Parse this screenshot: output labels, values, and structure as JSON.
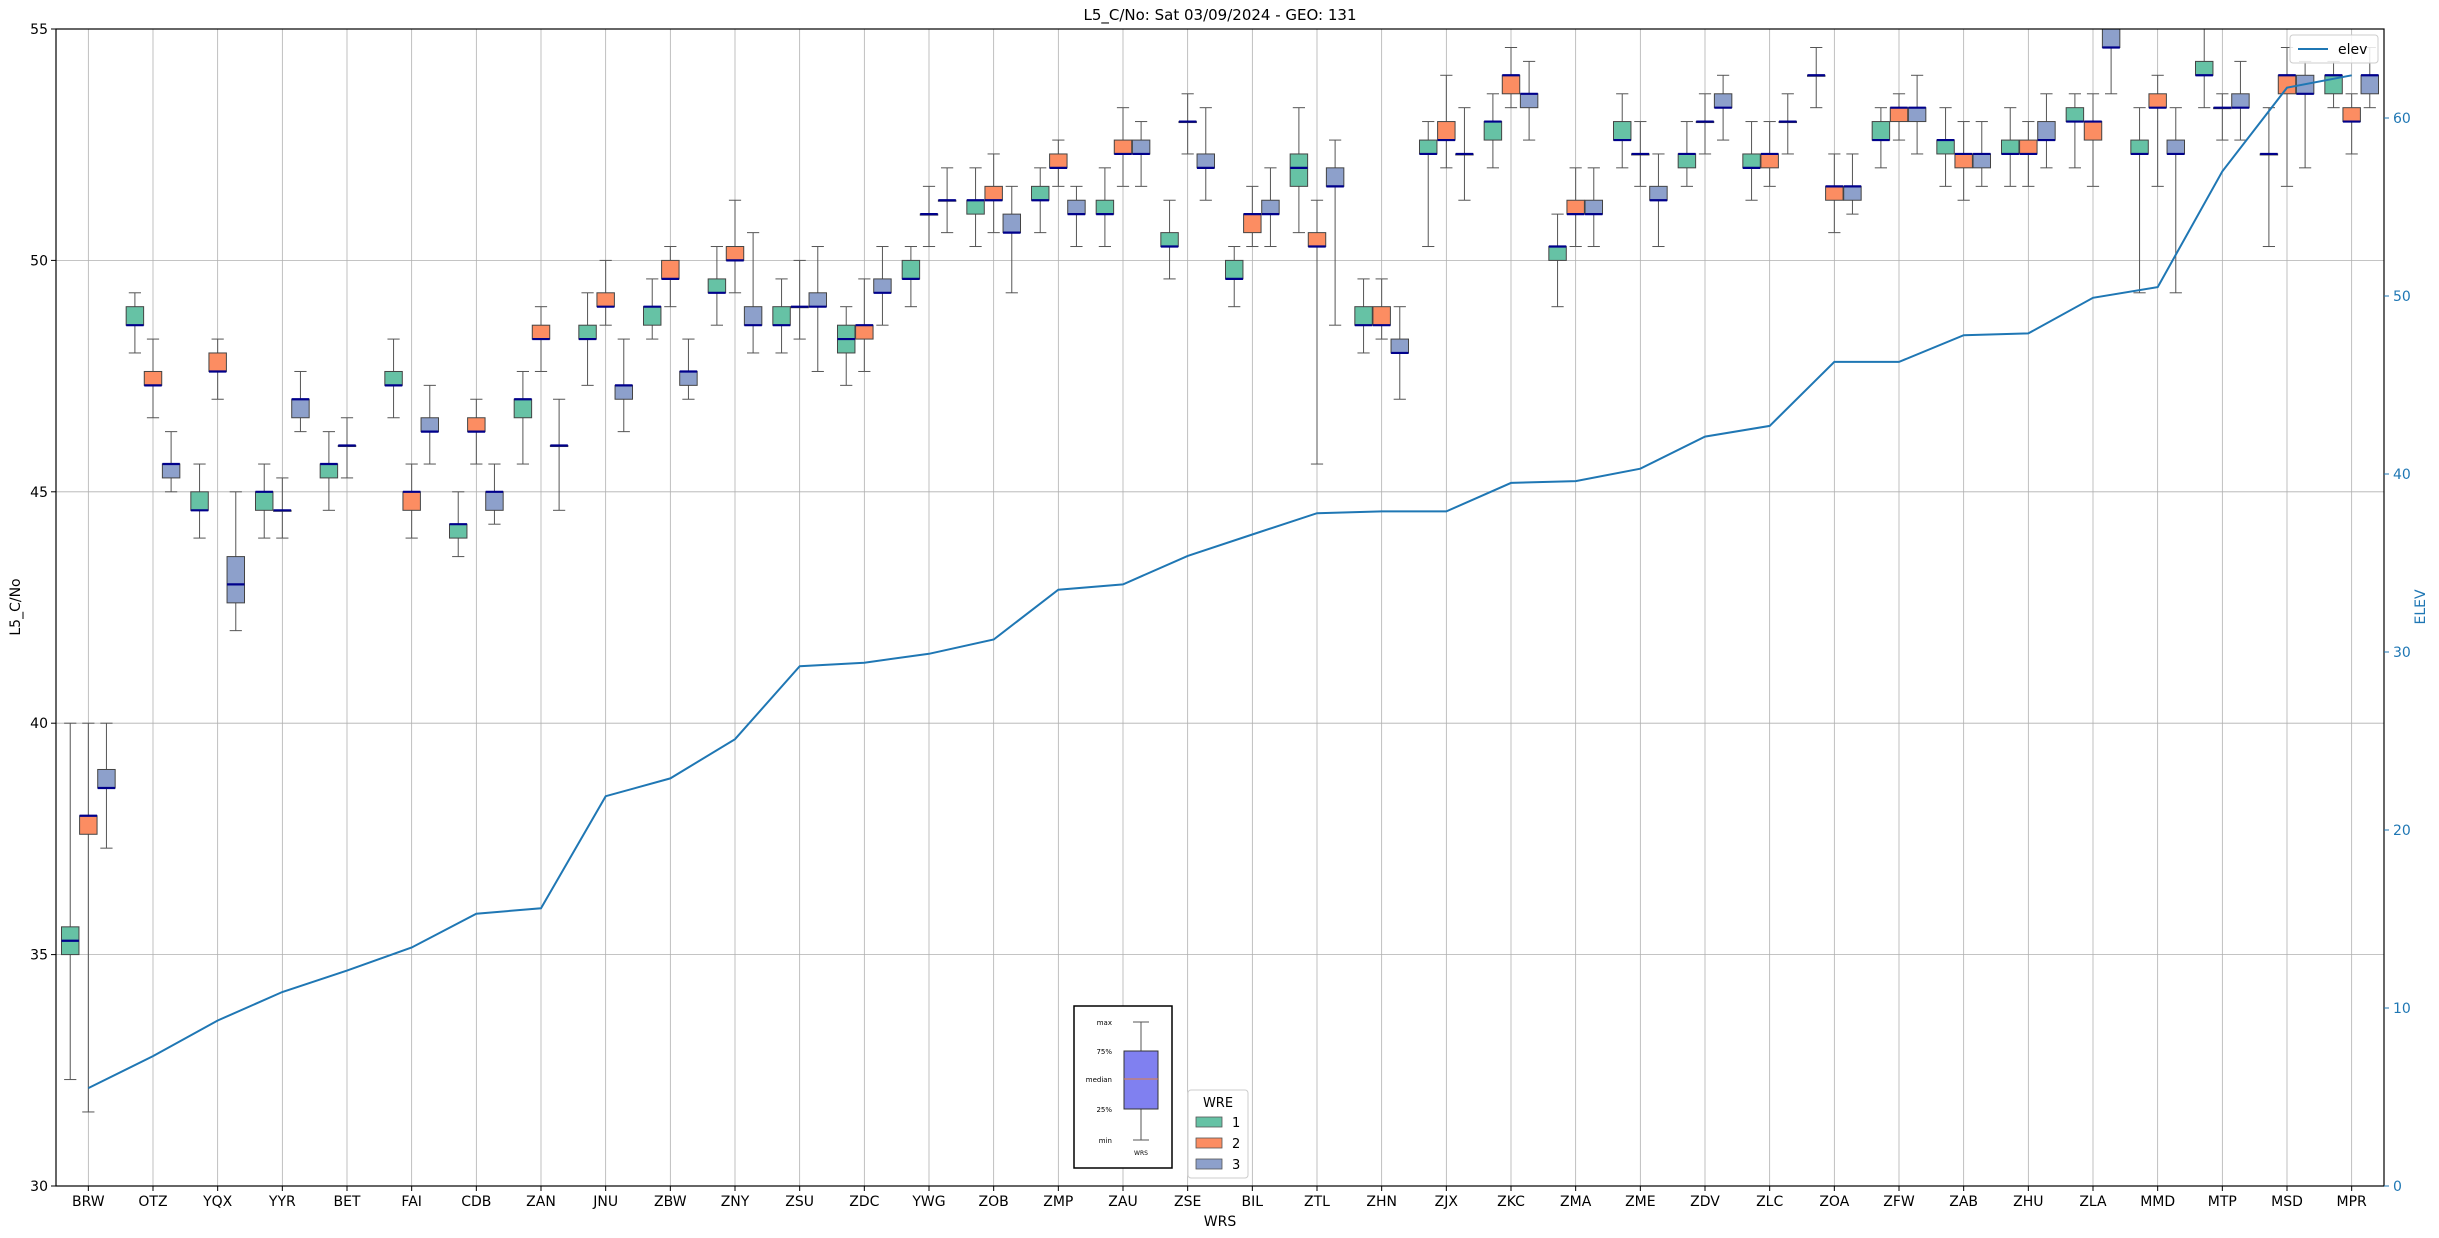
{
  "chart_data": {
    "type": "box",
    "title": "L5_C/No: Sat 03/09/2024 - GEO: 131",
    "xlabel": "WRS",
    "ylabel": "L5_C/No",
    "y2label": "ELEV",
    "ylim": [
      30,
      55
    ],
    "y2lim": [
      0,
      65
    ],
    "yticks": [
      30,
      35,
      40,
      45,
      50,
      55
    ],
    "y2ticks": [
      0,
      10,
      20,
      30,
      40,
      50,
      60
    ],
    "grid": true,
    "categories": [
      "BRW",
      "OTZ",
      "YQX",
      "YYR",
      "BET",
      "FAI",
      "CDB",
      "ZAN",
      "JNU",
      "ZBW",
      "ZNY",
      "ZSU",
      "ZDC",
      "YWG",
      "ZOB",
      "ZMP",
      "ZAU",
      "ZSE",
      "BIL",
      "ZTL",
      "ZHN",
      "ZJX",
      "ZKC",
      "ZMA",
      "ZME",
      "ZDV",
      "ZLC",
      "ZOA",
      "ZFW",
      "ZAB",
      "ZHU",
      "ZLA",
      "MMD",
      "MTP",
      "MSD",
      "MPR"
    ],
    "colors": {
      "1": "#66c2a5",
      "2": "#fc8d62",
      "3": "#8da0cb",
      "elev": "#1f77b4",
      "median": "#00008b",
      "whisker": "#555555"
    },
    "legend": {
      "title": "WRE",
      "labels": [
        "1",
        "2",
        "3"
      ],
      "position": "bottom-center"
    },
    "elev_legend": {
      "label": "elev",
      "position": "top-right"
    },
    "key_box": {
      "labels": [
        "max",
        "75%",
        "median",
        "25%",
        "min"
      ],
      "xlabel": "WRS",
      "fill": "#8080f0"
    },
    "elev": [
      5.5,
      7.3,
      9.3,
      10.9,
      12.1,
      13.4,
      15.3,
      15.6,
      21.9,
      22.9,
      25.1,
      29.2,
      29.4,
      29.9,
      30.7,
      33.5,
      33.8,
      35.4,
      36.6,
      37.8,
      37.9,
      37.9,
      39.5,
      39.6,
      40.3,
      42.1,
      42.7,
      46.3,
      46.3,
      47.8,
      47.9,
      49.9,
      50.5,
      57.0,
      61.7,
      62.4
    ],
    "boxes": [
      {
        "cat": "BRW",
        "wre": 1,
        "min": 32.3,
        "q1": 35.0,
        "med": 35.3,
        "q3": 35.6,
        "max": 40.0
      },
      {
        "cat": "BRW",
        "wre": 2,
        "min": 31.6,
        "q1": 37.6,
        "med": 38.0,
        "q3": 38.0,
        "max": 40.0
      },
      {
        "cat": "BRW",
        "wre": 3,
        "min": 37.3,
        "q1": 38.6,
        "med": 38.6,
        "q3": 39.0,
        "max": 40.0
      },
      {
        "cat": "OTZ",
        "wre": 1,
        "min": 48.0,
        "q1": 48.6,
        "med": 48.6,
        "q3": 49.0,
        "max": 49.3
      },
      {
        "cat": "OTZ",
        "wre": 2,
        "min": 46.6,
        "q1": 47.3,
        "med": 47.3,
        "q3": 47.6,
        "max": 48.3
      },
      {
        "cat": "OTZ",
        "wre": 3,
        "min": 45.0,
        "q1": 45.3,
        "med": 45.6,
        "q3": 45.6,
        "max": 46.3
      },
      {
        "cat": "YQX",
        "wre": 1,
        "min": 44.0,
        "q1": 44.6,
        "med": 44.6,
        "q3": 45.0,
        "max": 45.6
      },
      {
        "cat": "YQX",
        "wre": 2,
        "min": 47.0,
        "q1": 47.6,
        "med": 47.6,
        "q3": 48.0,
        "max": 48.3
      },
      {
        "cat": "YQX",
        "wre": 3,
        "min": 42.0,
        "q1": 42.6,
        "med": 43.0,
        "q3": 43.6,
        "max": 45.0
      },
      {
        "cat": "YYR",
        "wre": 1,
        "min": 44.0,
        "q1": 44.6,
        "med": 45.0,
        "q3": 45.0,
        "max": 45.6
      },
      {
        "cat": "YYR",
        "wre": 2,
        "min": 44.0,
        "q1": 44.6,
        "med": 44.6,
        "q3": 44.6,
        "max": 45.3
      },
      {
        "cat": "YYR",
        "wre": 3,
        "min": 46.3,
        "q1": 46.6,
        "med": 47.0,
        "q3": 47.0,
        "max": 47.6
      },
      {
        "cat": "BET",
        "wre": 1,
        "min": 44.6,
        "q1": 45.3,
        "med": 45.6,
        "q3": 45.6,
        "max": 46.3
      },
      {
        "cat": "BET",
        "wre": 2,
        "min": 45.3,
        "q1": 46.0,
        "med": 46.0,
        "q3": 46.0,
        "max": 46.6
      },
      {
        "cat": "FAI",
        "wre": 1,
        "min": 46.6,
        "q1": 47.3,
        "med": 47.3,
        "q3": 47.6,
        "max": 48.3
      },
      {
        "cat": "FAI",
        "wre": 2,
        "min": 44.0,
        "q1": 44.6,
        "med": 45.0,
        "q3": 45.0,
        "max": 45.6
      },
      {
        "cat": "FAI",
        "wre": 3,
        "min": 45.6,
        "q1": 46.3,
        "med": 46.3,
        "q3": 46.6,
        "max": 47.3
      },
      {
        "cat": "CDB",
        "wre": 1,
        "min": 43.6,
        "q1": 44.0,
        "med": 44.3,
        "q3": 44.3,
        "max": 45.0
      },
      {
        "cat": "CDB",
        "wre": 2,
        "min": 45.6,
        "q1": 46.3,
        "med": 46.3,
        "q3": 46.6,
        "max": 47.0
      },
      {
        "cat": "CDB",
        "wre": 3,
        "min": 44.3,
        "q1": 44.6,
        "med": 45.0,
        "q3": 45.0,
        "max": 45.6
      },
      {
        "cat": "ZAN",
        "wre": 1,
        "min": 45.6,
        "q1": 46.6,
        "med": 47.0,
        "q3": 47.0,
        "max": 47.6
      },
      {
        "cat": "ZAN",
        "wre": 2,
        "min": 47.6,
        "q1": 48.3,
        "med": 48.3,
        "q3": 48.6,
        "max": 49.0
      },
      {
        "cat": "ZAN",
        "wre": 3,
        "min": 44.6,
        "q1": 46.0,
        "med": 46.0,
        "q3": 46.0,
        "max": 47.0
      },
      {
        "cat": "JNU",
        "wre": 1,
        "min": 47.3,
        "q1": 48.3,
        "med": 48.3,
        "q3": 48.6,
        "max": 49.3
      },
      {
        "cat": "JNU",
        "wre": 2,
        "min": 48.6,
        "q1": 49.0,
        "med": 49.0,
        "q3": 49.3,
        "max": 50.0
      },
      {
        "cat": "JNU",
        "wre": 3,
        "min": 46.3,
        "q1": 47.0,
        "med": 47.3,
        "q3": 47.3,
        "max": 48.3
      },
      {
        "cat": "ZBW",
        "wre": 1,
        "min": 48.3,
        "q1": 48.6,
        "med": 49.0,
        "q3": 49.0,
        "max": 49.6
      },
      {
        "cat": "ZBW",
        "wre": 2,
        "min": 49.0,
        "q1": 49.6,
        "med": 49.6,
        "q3": 50.0,
        "max": 50.3
      },
      {
        "cat": "ZBW",
        "wre": 3,
        "min": 47.0,
        "q1": 47.3,
        "med": 47.6,
        "q3": 47.6,
        "max": 48.3
      },
      {
        "cat": "ZNY",
        "wre": 1,
        "min": 48.6,
        "q1": 49.3,
        "med": 49.3,
        "q3": 49.6,
        "max": 50.3
      },
      {
        "cat": "ZNY",
        "wre": 2,
        "min": 49.3,
        "q1": 50.0,
        "med": 50.0,
        "q3": 50.3,
        "max": 51.3
      },
      {
        "cat": "ZNY",
        "wre": 3,
        "min": 48.0,
        "q1": 48.6,
        "med": 48.6,
        "q3": 49.0,
        "max": 50.6
      },
      {
        "cat": "ZSU",
        "wre": 1,
        "min": 48.0,
        "q1": 48.6,
        "med": 48.6,
        "q3": 49.0,
        "max": 49.6
      },
      {
        "cat": "ZSU",
        "wre": 2,
        "min": 48.3,
        "q1": 49.0,
        "med": 49.0,
        "q3": 49.0,
        "max": 50.0
      },
      {
        "cat": "ZSU",
        "wre": 3,
        "min": 47.6,
        "q1": 49.0,
        "med": 49.0,
        "q3": 49.3,
        "max": 50.3
      },
      {
        "cat": "ZDC",
        "wre": 1,
        "min": 47.3,
        "q1": 48.0,
        "med": 48.3,
        "q3": 48.6,
        "max": 49.0
      },
      {
        "cat": "ZDC",
        "wre": 2,
        "min": 47.6,
        "q1": 48.3,
        "med": 48.6,
        "q3": 48.6,
        "max": 49.6
      },
      {
        "cat": "ZDC",
        "wre": 3,
        "min": 48.6,
        "q1": 49.3,
        "med": 49.3,
        "q3": 49.6,
        "max": 50.3
      },
      {
        "cat": "YWG",
        "wre": 1,
        "min": 49.0,
        "q1": 49.6,
        "med": 49.6,
        "q3": 50.0,
        "max": 50.3
      },
      {
        "cat": "YWG",
        "wre": 2,
        "min": 50.3,
        "q1": 51.0,
        "med": 51.0,
        "q3": 51.0,
        "max": 51.6
      },
      {
        "cat": "YWG",
        "wre": 3,
        "min": 50.6,
        "q1": 51.3,
        "med": 51.3,
        "q3": 51.3,
        "max": 52.0
      },
      {
        "cat": "ZOB",
        "wre": 1,
        "min": 50.3,
        "q1": 51.0,
        "med": 51.3,
        "q3": 51.3,
        "max": 52.0
      },
      {
        "cat": "ZOB",
        "wre": 2,
        "min": 50.6,
        "q1": 51.3,
        "med": 51.3,
        "q3": 51.6,
        "max": 52.3
      },
      {
        "cat": "ZOB",
        "wre": 3,
        "min": 49.3,
        "q1": 50.6,
        "med": 50.6,
        "q3": 51.0,
        "max": 51.6
      },
      {
        "cat": "ZMP",
        "wre": 1,
        "min": 50.6,
        "q1": 51.3,
        "med": 51.3,
        "q3": 51.6,
        "max": 52.0
      },
      {
        "cat": "ZMP",
        "wre": 2,
        "min": 51.6,
        "q1": 52.0,
        "med": 52.0,
        "q3": 52.3,
        "max": 52.6
      },
      {
        "cat": "ZMP",
        "wre": 3,
        "min": 50.3,
        "q1": 51.0,
        "med": 51.0,
        "q3": 51.3,
        "max": 51.6
      },
      {
        "cat": "ZAU",
        "wre": 1,
        "min": 50.3,
        "q1": 51.0,
        "med": 51.0,
        "q3": 51.3,
        "max": 52.0
      },
      {
        "cat": "ZAU",
        "wre": 2,
        "min": 51.6,
        "q1": 52.3,
        "med": 52.3,
        "q3": 52.6,
        "max": 53.3
      },
      {
        "cat": "ZAU",
        "wre": 3,
        "min": 51.6,
        "q1": 52.3,
        "med": 52.3,
        "q3": 52.6,
        "max": 53.0
      },
      {
        "cat": "ZSE",
        "wre": 1,
        "min": 49.6,
        "q1": 50.3,
        "med": 50.3,
        "q3": 50.6,
        "max": 51.3
      },
      {
        "cat": "ZSE",
        "wre": 2,
        "min": 52.3,
        "q1": 53.0,
        "med": 53.0,
        "q3": 53.0,
        "max": 53.6
      },
      {
        "cat": "ZSE",
        "wre": 3,
        "min": 51.3,
        "q1": 52.0,
        "med": 52.0,
        "q3": 52.3,
        "max": 53.3
      },
      {
        "cat": "BIL",
        "wre": 1,
        "min": 49.0,
        "q1": 49.6,
        "med": 49.6,
        "q3": 50.0,
        "max": 50.3
      },
      {
        "cat": "BIL",
        "wre": 2,
        "min": 50.3,
        "q1": 50.6,
        "med": 51.0,
        "q3": 51.0,
        "max": 51.6
      },
      {
        "cat": "BIL",
        "wre": 3,
        "min": 50.3,
        "q1": 51.0,
        "med": 51.0,
        "q3": 51.3,
        "max": 52.0
      },
      {
        "cat": "ZTL",
        "wre": 1,
        "min": 50.6,
        "q1": 51.6,
        "med": 52.0,
        "q3": 52.3,
        "max": 53.3
      },
      {
        "cat": "ZTL",
        "wre": 2,
        "min": 45.6,
        "q1": 50.3,
        "med": 50.3,
        "q3": 50.6,
        "max": 51.3
      },
      {
        "cat": "ZTL",
        "wre": 3,
        "min": 48.6,
        "q1": 51.6,
        "med": 51.6,
        "q3": 52.0,
        "max": 52.6
      },
      {
        "cat": "ZHN",
        "wre": 1,
        "min": 48.0,
        "q1": 48.6,
        "med": 48.6,
        "q3": 49.0,
        "max": 49.6
      },
      {
        "cat": "ZHN",
        "wre": 2,
        "min": 48.3,
        "q1": 48.6,
        "med": 48.6,
        "q3": 49.0,
        "max": 49.6
      },
      {
        "cat": "ZHN",
        "wre": 3,
        "min": 47.0,
        "q1": 48.0,
        "med": 48.0,
        "q3": 48.3,
        "max": 49.0
      },
      {
        "cat": "ZJX",
        "wre": 1,
        "min": 50.3,
        "q1": 52.3,
        "med": 52.3,
        "q3": 52.6,
        "max": 53.0
      },
      {
        "cat": "ZJX",
        "wre": 2,
        "min": 52.0,
        "q1": 52.6,
        "med": 52.6,
        "q3": 53.0,
        "max": 54.0
      },
      {
        "cat": "ZJX",
        "wre": 3,
        "min": 51.3,
        "q1": 52.3,
        "med": 52.3,
        "q3": 52.3,
        "max": 53.3
      },
      {
        "cat": "ZKC",
        "wre": 1,
        "min": 52.0,
        "q1": 52.6,
        "med": 53.0,
        "q3": 53.0,
        "max": 53.6
      },
      {
        "cat": "ZKC",
        "wre": 2,
        "min": 53.3,
        "q1": 53.6,
        "med": 54.0,
        "q3": 54.0,
        "max": 54.6
      },
      {
        "cat": "ZKC",
        "wre": 3,
        "min": 52.6,
        "q1": 53.3,
        "med": 53.6,
        "q3": 53.6,
        "max": 54.3
      },
      {
        "cat": "ZMA",
        "wre": 1,
        "min": 49.0,
        "q1": 50.0,
        "med": 50.3,
        "q3": 50.3,
        "max": 51.0
      },
      {
        "cat": "ZMA",
        "wre": 2,
        "min": 50.3,
        "q1": 51.0,
        "med": 51.0,
        "q3": 51.3,
        "max": 52.0
      },
      {
        "cat": "ZMA",
        "wre": 3,
        "min": 50.3,
        "q1": 51.0,
        "med": 51.0,
        "q3": 51.3,
        "max": 52.0
      },
      {
        "cat": "ZME",
        "wre": 1,
        "min": 52.0,
        "q1": 52.6,
        "med": 52.6,
        "q3": 53.0,
        "max": 53.6
      },
      {
        "cat": "ZME",
        "wre": 2,
        "min": 51.6,
        "q1": 52.3,
        "med": 52.3,
        "q3": 52.3,
        "max": 53.0
      },
      {
        "cat": "ZME",
        "wre": 3,
        "min": 50.3,
        "q1": 51.3,
        "med": 51.3,
        "q3": 51.6,
        "max": 52.3
      },
      {
        "cat": "ZDV",
        "wre": 1,
        "min": 51.6,
        "q1": 52.0,
        "med": 52.3,
        "q3": 52.3,
        "max": 53.0
      },
      {
        "cat": "ZDV",
        "wre": 2,
        "min": 52.3,
        "q1": 53.0,
        "med": 53.0,
        "q3": 53.0,
        "max": 53.6
      },
      {
        "cat": "ZDV",
        "wre": 3,
        "min": 52.6,
        "q1": 53.3,
        "med": 53.3,
        "q3": 53.6,
        "max": 54.0
      },
      {
        "cat": "ZLC",
        "wre": 1,
        "min": 51.3,
        "q1": 52.0,
        "med": 52.0,
        "q3": 52.3,
        "max": 53.0
      },
      {
        "cat": "ZLC",
        "wre": 2,
        "min": 51.6,
        "q1": 52.0,
        "med": 52.3,
        "q3": 52.3,
        "max": 53.0
      },
      {
        "cat": "ZLC",
        "wre": 3,
        "min": 52.3,
        "q1": 53.0,
        "med": 53.0,
        "q3": 53.0,
        "max": 53.6
      },
      {
        "cat": "ZOA",
        "wre": 1,
        "min": 53.3,
        "q1": 54.0,
        "med": 54.0,
        "q3": 54.0,
        "max": 54.6
      },
      {
        "cat": "ZOA",
        "wre": 2,
        "min": 50.6,
        "q1": 51.3,
        "med": 51.6,
        "q3": 51.6,
        "max": 52.3
      },
      {
        "cat": "ZOA",
        "wre": 3,
        "min": 51.0,
        "q1": 51.3,
        "med": 51.6,
        "q3": 51.6,
        "max": 52.3
      },
      {
        "cat": "ZFW",
        "wre": 1,
        "min": 52.0,
        "q1": 52.6,
        "med": 52.6,
        "q3": 53.0,
        "max": 53.3
      },
      {
        "cat": "ZFW",
        "wre": 2,
        "min": 52.6,
        "q1": 53.0,
        "med": 53.3,
        "q3": 53.3,
        "max": 53.6
      },
      {
        "cat": "ZFW",
        "wre": 3,
        "min": 52.3,
        "q1": 53.0,
        "med": 53.3,
        "q3": 53.3,
        "max": 54.0
      },
      {
        "cat": "ZAB",
        "wre": 1,
        "min": 51.6,
        "q1": 52.3,
        "med": 52.6,
        "q3": 52.6,
        "max": 53.3
      },
      {
        "cat": "ZAB",
        "wre": 2,
        "min": 51.3,
        "q1": 52.0,
        "med": 52.3,
        "q3": 52.3,
        "max": 53.0
      },
      {
        "cat": "ZAB",
        "wre": 3,
        "min": 51.6,
        "q1": 52.0,
        "med": 52.3,
        "q3": 52.3,
        "max": 53.0
      },
      {
        "cat": "ZHU",
        "wre": 1,
        "min": 51.6,
        "q1": 52.3,
        "med": 52.3,
        "q3": 52.6,
        "max": 53.3
      },
      {
        "cat": "ZHU",
        "wre": 2,
        "min": 51.6,
        "q1": 52.3,
        "med": 52.3,
        "q3": 52.6,
        "max": 53.0
      },
      {
        "cat": "ZHU",
        "wre": 3,
        "min": 52.0,
        "q1": 52.6,
        "med": 52.6,
        "q3": 53.0,
        "max": 53.6
      },
      {
        "cat": "ZLA",
        "wre": 1,
        "min": 52.0,
        "q1": 53.0,
        "med": 53.0,
        "q3": 53.3,
        "max": 53.6
      },
      {
        "cat": "ZLA",
        "wre": 2,
        "min": 51.6,
        "q1": 52.6,
        "med": 53.0,
        "q3": 53.0,
        "max": 53.6
      },
      {
        "cat": "ZLA",
        "wre": 3,
        "min": 53.6,
        "q1": 54.6,
        "med": 54.6,
        "q3": 55.0,
        "max": 55.0
      },
      {
        "cat": "MMD",
        "wre": 1,
        "min": 49.3,
        "q1": 52.3,
        "med": 52.3,
        "q3": 52.6,
        "max": 53.3
      },
      {
        "cat": "MMD",
        "wre": 2,
        "min": 51.6,
        "q1": 53.3,
        "med": 53.3,
        "q3": 53.6,
        "max": 54.0
      },
      {
        "cat": "MMD",
        "wre": 3,
        "min": 49.3,
        "q1": 52.3,
        "med": 52.3,
        "q3": 52.6,
        "max": 53.3
      },
      {
        "cat": "MTP",
        "wre": 1,
        "min": 53.3,
        "q1": 54.0,
        "med": 54.0,
        "q3": 54.3,
        "max": 55.0
      },
      {
        "cat": "MTP",
        "wre": 2,
        "min": 52.6,
        "q1": 53.3,
        "med": 53.3,
        "q3": 53.3,
        "max": 53.6
      },
      {
        "cat": "MTP",
        "wre": 3,
        "min": 52.6,
        "q1": 53.3,
        "med": 53.3,
        "q3": 53.6,
        "max": 54.3
      },
      {
        "cat": "MSD",
        "wre": 1,
        "min": 50.3,
        "q1": 52.3,
        "med": 52.3,
        "q3": 52.3,
        "max": 53.3
      },
      {
        "cat": "MSD",
        "wre": 2,
        "min": 51.6,
        "q1": 53.6,
        "med": 54.0,
        "q3": 54.0,
        "max": 54.6
      },
      {
        "cat": "MSD",
        "wre": 3,
        "min": 52.0,
        "q1": 53.6,
        "med": 53.6,
        "q3": 54.0,
        "max": 54.3
      },
      {
        "cat": "MPR",
        "wre": 1,
        "min": 53.3,
        "q1": 53.6,
        "med": 54.0,
        "q3": 54.0,
        "max": 54.3
      },
      {
        "cat": "MPR",
        "wre": 2,
        "min": 52.3,
        "q1": 53.0,
        "med": 53.0,
        "q3": 53.3,
        "max": 53.6
      },
      {
        "cat": "MPR",
        "wre": 3,
        "min": 53.3,
        "q1": 53.6,
        "med": 54.0,
        "q3": 54.0,
        "max": 54.6
      }
    ]
  }
}
